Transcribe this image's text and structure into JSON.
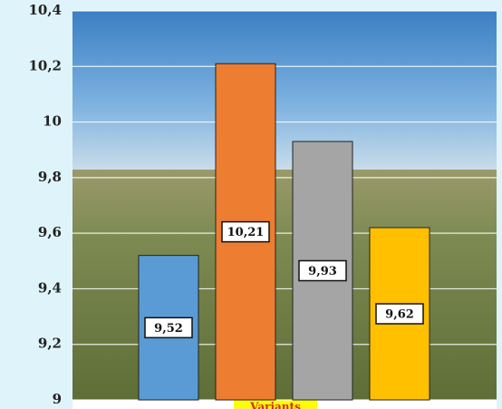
{
  "chart_data": {
    "type": "bar",
    "x_label": "Variants",
    "categories": [
      null,
      null,
      null,
      null
    ],
    "values": [
      9.52,
      10.21,
      9.93,
      9.62
    ],
    "value_labels": [
      "9,52",
      "10,21",
      "9,93",
      "9,62"
    ],
    "colors": [
      "#5b9bd5",
      "#ed7d31",
      "#a5a5a5",
      "#ffc000"
    ],
    "ylim": [
      9,
      10.4
    ],
    "yticks": [
      9,
      {
        "value": 9.2,
        "label": "9,2"
      },
      {
        "value": 9.4,
        "label": "9,4"
      },
      {
        "value": 9.6,
        "label": "9,6"
      },
      {
        "value": 9.8,
        "label": "9,8"
      },
      10,
      {
        "value": 10.2,
        "label": "10,2"
      },
      {
        "value": 10.4,
        "label": "10,4"
      }
    ],
    "grid": true
  }
}
